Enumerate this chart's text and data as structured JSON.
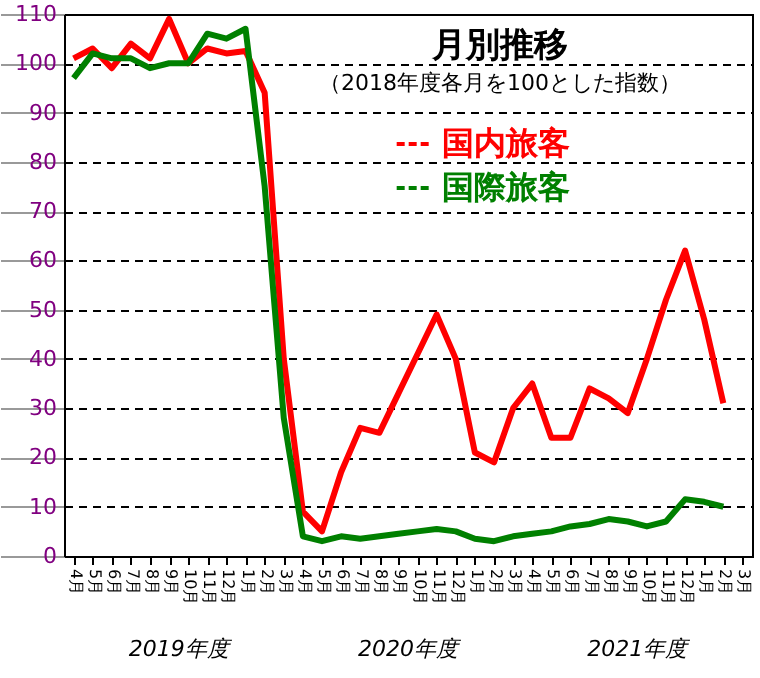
{
  "chart_data": {
    "type": "line",
    "title": "月別推移",
    "subtitle": "（2018年度各月を100とした指数）",
    "categories": [
      "4月",
      "5月",
      "6月",
      "7月",
      "8月",
      "9月",
      "10月",
      "11月",
      "12月",
      "1月",
      "2月",
      "3月",
      "4月",
      "5月",
      "6月",
      "7月",
      "8月",
      "9月",
      "10月",
      "11月",
      "12月",
      "1月",
      "2月",
      "3月",
      "4月",
      "5月",
      "6月",
      "7月",
      "8月",
      "9月",
      "10月",
      "11月",
      "12月",
      "1月",
      "2月",
      "3月"
    ],
    "series": [
      {
        "name": "国内旅客",
        "color": "#ff0000",
        "values": [
          101,
          103,
          99,
          104,
          101,
          109,
          100,
          103,
          102,
          102.5,
          94,
          40,
          9,
          5,
          17,
          26,
          25,
          33,
          41,
          49,
          40,
          21,
          19,
          30,
          35,
          24,
          24,
          34,
          32,
          29,
          40,
          52,
          62,
          48,
          31,
          null
        ]
      },
      {
        "name": "国際旅客",
        "color": "#008000",
        "values": [
          97,
          102,
          101,
          101,
          99,
          100,
          100,
          106,
          105,
          107,
          75,
          28,
          4,
          3,
          4,
          3.5,
          4,
          4.5,
          5,
          5.5,
          5,
          3.5,
          3,
          4,
          4.5,
          5,
          6,
          6.5,
          7.5,
          7,
          6,
          7,
          11.5,
          11,
          10,
          null
        ]
      }
    ],
    "ylim": [
      0,
      110
    ],
    "yticks": [
      0,
      10,
      20,
      30,
      40,
      50,
      60,
      70,
      80,
      90,
      100,
      110
    ],
    "grid": "y",
    "legend": "top",
    "marker": "none",
    "line_style": "solid",
    "annotations": [
      "2019年度",
      "2020年度",
      "2021年度"
    ]
  }
}
